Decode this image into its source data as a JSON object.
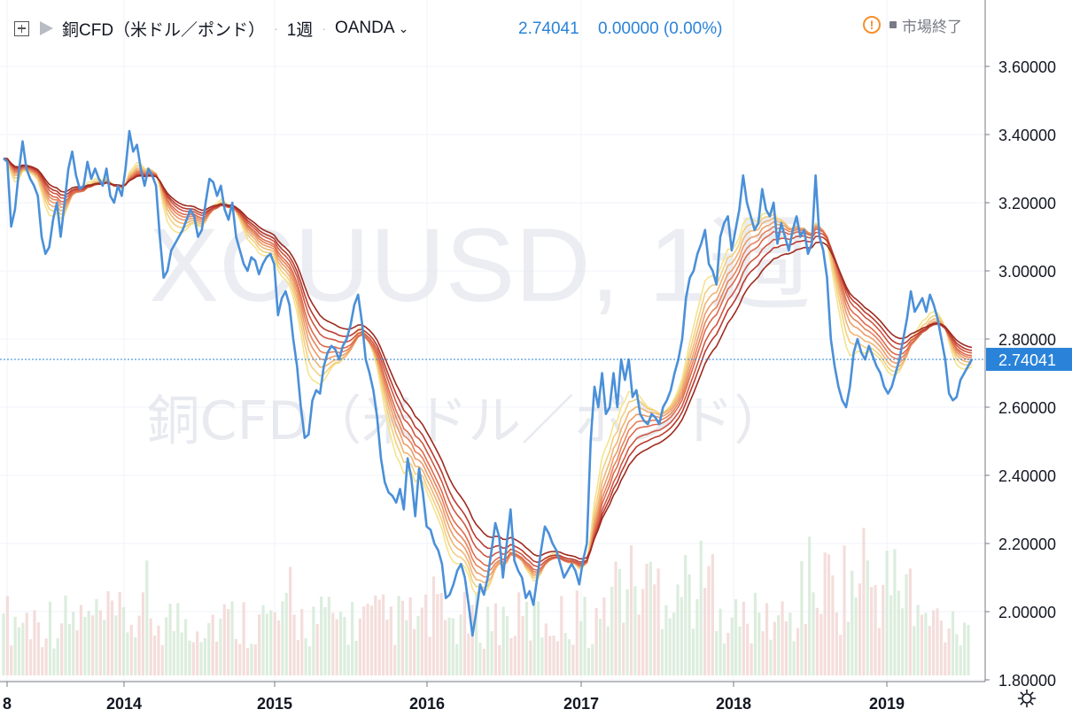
{
  "header": {
    "title": "銅CFD（米ドル／ポンド）",
    "interval": "1週",
    "broker": "OANDA",
    "price": "2.74041",
    "change": "0.00000 (0.00%)",
    "status": "市場終了",
    "icons": [
      "add-symbol-icon",
      "flag-icon",
      "chevron-down-icon",
      "warning-icon",
      "status-dot-icon",
      "settings-icon"
    ]
  },
  "watermark": {
    "symbol": "XCUUSD, 1週",
    "description": "銅CFD（米ドル／ポンド）"
  },
  "colors": {
    "price_line": "#4a90d9",
    "last_price_label": "#2a83d9",
    "volume_up": "#d6ead7",
    "volume_down": "#f2d7d5",
    "ribbon": [
      "#f5e38d",
      "#f3cf7f",
      "#f0b574",
      "#ec9c69",
      "#e7835b",
      "#dd6b4d",
      "#cf5741",
      "#b93a2f",
      "#9e2a1e"
    ]
  },
  "chart_data": {
    "type": "line",
    "x_axis": {
      "ticks": [
        "8",
        "2014",
        "2015",
        "2016",
        "2017",
        "2018",
        "2019"
      ]
    },
    "y_axis": {
      "ticks": [
        "3.60000",
        "3.40000",
        "3.20000",
        "3.00000",
        "2.80000",
        "2.60000",
        "2.40000",
        "2.20000",
        "2.00000",
        "1.80000"
      ],
      "range": [
        1.8,
        3.6
      ],
      "position": "right"
    },
    "last_price": {
      "value": 2.74041,
      "label": "2.74041"
    },
    "grid": true,
    "series": [
      {
        "values": [
          3.33,
          3.32,
          3.13,
          3.18,
          3.29,
          3.38,
          3.3,
          3.27,
          3.25,
          3.22,
          3.1,
          3.05,
          3.07,
          3.15,
          3.2,
          3.1,
          3.2,
          3.3,
          3.35,
          3.28,
          3.24,
          3.25,
          3.32,
          3.27,
          3.3,
          3.27,
          3.25,
          3.3,
          3.22,
          3.2,
          3.25,
          3.22,
          3.3,
          3.41,
          3.35,
          3.37,
          3.3,
          3.25,
          3.3,
          3.28,
          3.25,
          3.1,
          2.98,
          3.0,
          3.06,
          3.08,
          3.1,
          3.12,
          3.15,
          3.18,
          3.16,
          3.1,
          3.12,
          3.2,
          3.27,
          3.26,
          3.22,
          3.25,
          3.18,
          3.15,
          3.2,
          3.1,
          3.06,
          3.02,
          3.0,
          3.04,
          3.03,
          2.99,
          3.02,
          3.04,
          3.05,
          3.02,
          2.87,
          2.92,
          2.94,
          2.9,
          2.8,
          2.72,
          2.6,
          2.51,
          2.52,
          2.62,
          2.65,
          2.64,
          2.72,
          2.76,
          2.78,
          2.77,
          2.74,
          2.78,
          2.8,
          2.84,
          2.9,
          2.93,
          2.85,
          2.74,
          2.7,
          2.65,
          2.57,
          2.45,
          2.38,
          2.35,
          2.34,
          2.32,
          2.36,
          2.3,
          2.45,
          2.39,
          2.28,
          2.42,
          2.35,
          2.25,
          2.24,
          2.2,
          2.18,
          2.14,
          2.04,
          2.05,
          2.08,
          2.12,
          2.14,
          2.1,
          2.02,
          1.93,
          2.0,
          2.08,
          2.05,
          2.1,
          2.18,
          2.26,
          2.22,
          2.1,
          2.2,
          2.3,
          2.15,
          2.12,
          2.1,
          2.04,
          2.06,
          2.02,
          2.1,
          2.18,
          2.25,
          2.23,
          2.2,
          2.18,
          2.14,
          2.1,
          2.12,
          2.14,
          2.12,
          2.08,
          2.15,
          2.2,
          2.5,
          2.66,
          2.6,
          2.7,
          2.58,
          2.6,
          2.7,
          2.6,
          2.74,
          2.68,
          2.74,
          2.63,
          2.65,
          2.58,
          2.56,
          2.55,
          2.58,
          2.57,
          2.55,
          2.6,
          2.62,
          2.65,
          2.7,
          2.74,
          2.8,
          2.92,
          2.98,
          3.0,
          3.05,
          3.08,
          3.12,
          3.02,
          3.0,
          2.96,
          3.1,
          3.14,
          3.16,
          3.06,
          3.12,
          3.18,
          3.28,
          3.2,
          3.16,
          3.12,
          3.14,
          3.24,
          3.18,
          3.16,
          3.2,
          3.08,
          3.14,
          3.1,
          3.06,
          3.12,
          3.16,
          3.1,
          3.12,
          3.05,
          3.08,
          3.28,
          3.1,
          3.06,
          2.98,
          2.8,
          2.72,
          2.66,
          2.62,
          2.6,
          2.66,
          2.76,
          2.8,
          2.76,
          2.74,
          2.78,
          2.75,
          2.72,
          2.7,
          2.66,
          2.64,
          2.66,
          2.7,
          2.74,
          2.8,
          2.86,
          2.94,
          2.88,
          2.9,
          2.92,
          2.88,
          2.93,
          2.9,
          2.86,
          2.8,
          2.74,
          2.64,
          2.62,
          2.63,
          2.68,
          2.7,
          2.72,
          2.74041
        ]
      }
    ]
  }
}
